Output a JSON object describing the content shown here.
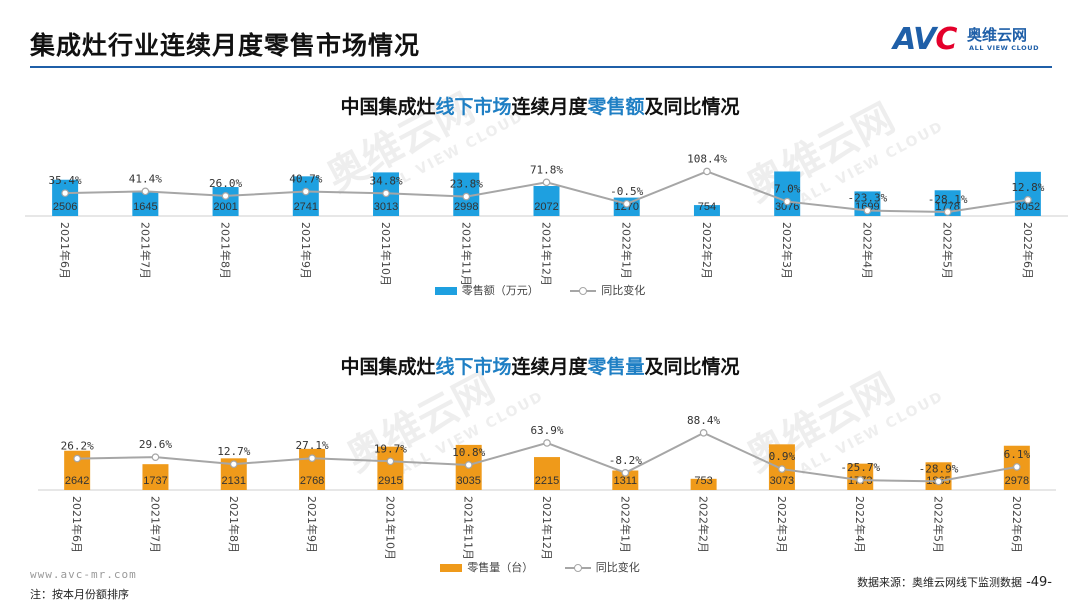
{
  "page": {
    "title": "集成灶行业连续月度零售市场情况",
    "logo": {
      "mark_a": "AV",
      "mark_c": "C",
      "cn": "奥维云网",
      "en": "ALL VIEW CLOUD"
    },
    "watermark_cn": "奥维云网",
    "watermark_en": "ALL VIEW CLOUD",
    "footer_url": "www.avc-mr.com",
    "footer_note": "注：按本月份额排序",
    "footer_source": "数据来源：奥维云网线下监测数据",
    "page_number": "-49-"
  },
  "colors": {
    "blue_bar": "#1ea0e0",
    "orange_bar": "#ef9a1a",
    "line": "#a6a6a6",
    "brand": "#1f5fa8",
    "title_highlight": "#1f7fc4"
  },
  "chart_data": [
    {
      "type": "bar+line",
      "title_parts": [
        "中国集成灶",
        "线下市场",
        "连续月度",
        "零售额",
        "及同比情况"
      ],
      "categories": [
        "2021年6月",
        "2021年7月",
        "2021年8月",
        "2021年9月",
        "2021年10月",
        "2021年11月",
        "2021年12月",
        "2022年1月",
        "2022年2月",
        "2022年3月",
        "2022年4月",
        "2022年5月",
        "2022年6月"
      ],
      "bar_series": {
        "name": "零售额（万元）",
        "values": [
          2506,
          1645,
          2001,
          2741,
          3013,
          2998,
          2072,
          1270,
          754,
          3076,
          1699,
          1778,
          3052
        ]
      },
      "line_series": {
        "name": "同比变化",
        "values": [
          35.4,
          41.4,
          26.0,
          40.7,
          34.8,
          23.8,
          71.8,
          -0.5,
          108.4,
          7.0,
          -23.3,
          -28.1,
          12.8
        ]
      },
      "line_labels": [
        "35.4%",
        "41.4%",
        "26.0%",
        "40.7%",
        "34.8%",
        "23.8%",
        "71.8%",
        "-0.5%",
        "108.4%",
        "7.0%",
        "-23.3%",
        "-28.1%",
        "12.8%"
      ],
      "bar_range": [
        0,
        3800
      ],
      "line_range": [
        -45,
        120
      ]
    },
    {
      "type": "bar+line",
      "title_parts": [
        "中国集成灶",
        "线下市场",
        "连续月度",
        "零售量",
        "及同比情况"
      ],
      "categories": [
        "2021年6月",
        "2021年7月",
        "2021年8月",
        "2021年9月",
        "2021年10月",
        "2021年11月",
        "2021年12月",
        "2022年1月",
        "2022年2月",
        "2022年3月",
        "2022年4月",
        "2022年5月",
        "2022年6月"
      ],
      "bar_series": {
        "name": "零售量（台）",
        "values": [
          2642,
          1737,
          2131,
          2768,
          2915,
          3035,
          2215,
          1311,
          753,
          3073,
          1773,
          1865,
          2978
        ]
      },
      "line_series": {
        "name": "同比变化",
        "values": [
          26.2,
          29.6,
          12.7,
          27.1,
          19.7,
          10.8,
          63.9,
          -8.2,
          88.4,
          0.9,
          -25.7,
          -28.9,
          6.1
        ]
      },
      "line_labels": [
        "26.2%",
        "29.6%",
        "12.7%",
        "27.1%",
        "19.7%",
        "10.8%",
        "63.9%",
        "-8.2%",
        "88.4%",
        "0.9%",
        "-25.7%",
        "-28.9%",
        "6.1%"
      ],
      "bar_range": [
        0,
        3700
      ],
      "line_range": [
        -40,
        100
      ]
    }
  ]
}
